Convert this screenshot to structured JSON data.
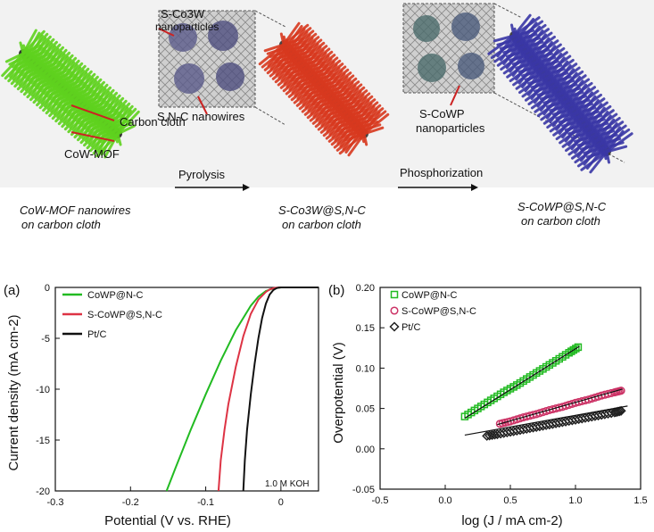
{
  "scheme": {
    "label_s_co3w": "S-Co3W",
    "label_nanoparticles": "nanoparticles",
    "label_sn_c": "S,N-C nanowires",
    "label_carbon_cloth": "Carbon cloth",
    "label_cow_mof": "CoW-MOF",
    "step1": "Pyrolysis",
    "step2": "Phosphorization",
    "label_s_cowp": "S-CoWP",
    "label_cowp_nano": "nanoparticles",
    "caption1_l1": "CoW-MOF nanowires",
    "caption1_l2": "on carbon cloth",
    "caption2_l1": "S-Co3W@S,N-C",
    "caption2_l2": "on carbon cloth",
    "caption3_l1": "S-CoWP@S,N-C",
    "caption3_l2": "on carbon cloth",
    "colors": {
      "green": "#5fd21e",
      "red": "#d8391f",
      "blue": "#3a37a6"
    }
  },
  "chart_data": [
    {
      "panel": "(a)",
      "type": "line",
      "xlabel": "Potential (V vs. RHE)",
      "ylabel": "Current density (mA cm-2)",
      "xlim": [
        -0.3,
        0.05
      ],
      "ylim": [
        -20,
        0
      ],
      "xticks": [
        -0.3,
        -0.2,
        -0.1,
        0
      ],
      "xtick_labels": [
        "-0.3",
        "-0.2",
        "-0.1",
        "0"
      ],
      "yticks": [
        -20,
        -15,
        -10,
        -5,
        0
      ],
      "ytick_labels": [
        "-20",
        "-15",
        "-10",
        "-5",
        "0"
      ],
      "annotation": "1.0 M KOH",
      "series": [
        {
          "name": "CoWP@N-C",
          "color": "#22bb22",
          "x": [
            -0.152,
            -0.14,
            -0.12,
            -0.1,
            -0.08,
            -0.06,
            -0.04,
            -0.03,
            -0.02,
            -0.01,
            0.0,
            0.02,
            0.05
          ],
          "y": [
            -20,
            -17.7,
            -14.0,
            -10.5,
            -7.2,
            -4.2,
            -1.8,
            -0.9,
            -0.35,
            -0.1,
            0,
            0,
            0
          ]
        },
        {
          "name": "S-CoWP@S,N-C",
          "color": "#dd3344",
          "x": [
            -0.083,
            -0.08,
            -0.075,
            -0.07,
            -0.06,
            -0.05,
            -0.04,
            -0.03,
            -0.02,
            -0.015,
            -0.01,
            -0.005,
            0.0,
            0.05
          ],
          "y": [
            -20,
            -17,
            -14,
            -11.5,
            -7.8,
            -4.8,
            -2.6,
            -1.2,
            -0.45,
            -0.2,
            -0.08,
            -0.02,
            0,
            0
          ]
        },
        {
          "name": "Pt/C",
          "color": "#111111",
          "x": [
            -0.05,
            -0.048,
            -0.045,
            -0.04,
            -0.035,
            -0.03,
            -0.025,
            -0.02,
            -0.015,
            -0.01,
            -0.006,
            -0.003,
            0.0,
            0.05
          ],
          "y": [
            -20,
            -17,
            -14,
            -10.5,
            -7.5,
            -5,
            -3,
            -1.6,
            -0.7,
            -0.25,
            -0.08,
            -0.02,
            0,
            0
          ]
        }
      ]
    },
    {
      "panel": "(b)",
      "type": "scatter",
      "xlabel": "log (J / mA cm-2)",
      "ylabel": "Overpotential (V)",
      "xlim": [
        -0.5,
        1.5
      ],
      "ylim": [
        -0.05,
        0.2
      ],
      "xticks": [
        -0.5,
        0.0,
        0.5,
        1.0,
        1.5
      ],
      "xtick_labels": [
        "-0.5",
        "0.0",
        "0.5",
        "1.0",
        "1.5"
      ],
      "yticks": [
        -0.05,
        0.0,
        0.05,
        0.1,
        0.15,
        0.2
      ],
      "ytick_labels": [
        "-0.05",
        "0.00",
        "0.05",
        "0.10",
        "0.15",
        "0.20"
      ],
      "series": [
        {
          "name": "CoWP@N-C",
          "color": "#22bb22",
          "marker": "square",
          "x": [
            0.15,
            0.25,
            0.35,
            0.45,
            0.55,
            0.65,
            0.75,
            0.85,
            0.95,
            1.02
          ],
          "y": [
            0.04,
            0.05,
            0.06,
            0.07,
            0.079,
            0.089,
            0.099,
            0.109,
            0.119,
            0.126
          ],
          "fit": {
            "x": [
              0.15,
              1.03
            ],
            "y": [
              0.038,
              0.127
            ]
          }
        },
        {
          "name": "S-CoWP@S,N-C",
          "color": "#cc3366",
          "marker": "circle",
          "x": [
            0.42,
            0.5,
            0.6,
            0.7,
            0.8,
            0.9,
            1.0,
            1.1,
            1.2,
            1.3,
            1.35
          ],
          "y": [
            0.031,
            0.034,
            0.039,
            0.043,
            0.048,
            0.052,
            0.057,
            0.061,
            0.066,
            0.07,
            0.072
          ],
          "fit": {
            "x": [
              0.4,
              1.36
            ],
            "y": [
              0.03,
              0.074
            ]
          }
        },
        {
          "name": "Pt/C",
          "color": "#222222",
          "marker": "diamond",
          "x": [
            0.32,
            0.4,
            0.5,
            0.6,
            0.7,
            0.8,
            0.9,
            1.0,
            1.1,
            1.2,
            1.3,
            1.35
          ],
          "y": [
            0.016,
            0.018,
            0.021,
            0.024,
            0.027,
            0.03,
            0.033,
            0.036,
            0.039,
            0.042,
            0.045,
            0.047
          ],
          "fit": {
            "x": [
              0.15,
              1.4
            ],
            "y": [
              0.017,
              0.053
            ]
          }
        }
      ]
    }
  ]
}
